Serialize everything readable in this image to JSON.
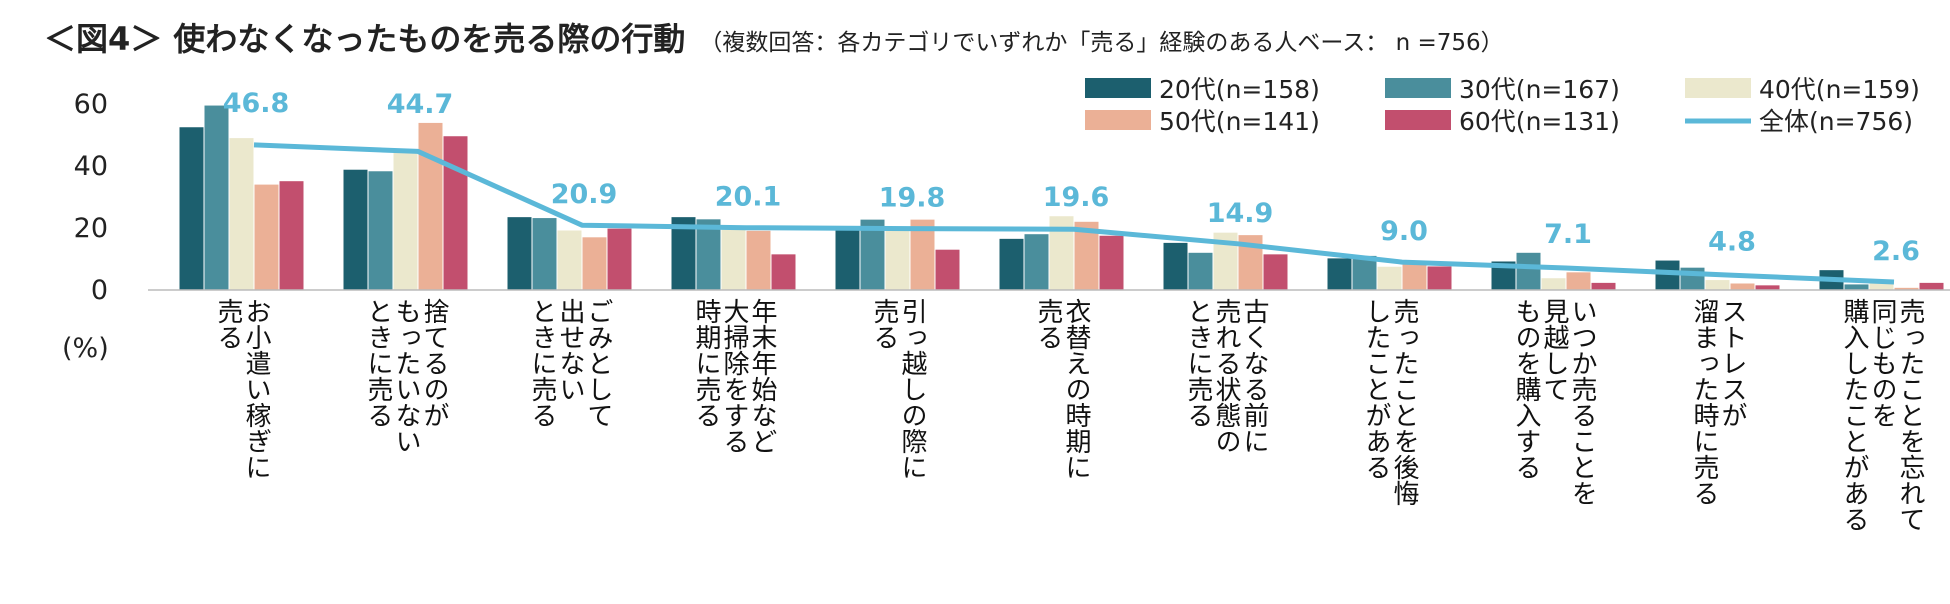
{
  "title": {
    "main": "＜図4＞ 使わなくなったものを売る際の行動",
    "sub": "（複数回答：各カテゴリでいずれか「売る」経験のある人ベース： n =756）"
  },
  "y_unit": "(%)",
  "colors": {
    "20s": "#1c5f6e",
    "30s": "#4a8e9c",
    "40s": "#ebe8cd",
    "50s": "#ebb096",
    "60s": "#c24f6e",
    "overall": "#5bb8d8"
  },
  "chart_data": {
    "type": "bar",
    "title": "使わなくなったものを売る際の行動",
    "ylabel": "(%)",
    "ylim": [
      0,
      60
    ],
    "yticks": [
      0,
      20,
      40,
      60
    ],
    "legend_position": "top-right",
    "categories": [
      [
        "お小遣い稼ぎに",
        "売る"
      ],
      [
        "捨てるのが",
        "もったいない",
        "ときに売る"
      ],
      [
        "ごみとして",
        "出せない",
        "ときに売る"
      ],
      [
        "年末年始など",
        "大掃除をする",
        "時期に売る"
      ],
      [
        "引っ越しの際に",
        "売る"
      ],
      [
        "衣替えの時期に",
        "売る"
      ],
      [
        "古くなる前に",
        "売れる状態の",
        "ときに売る"
      ],
      [
        "売ったことを後悔",
        "したことがある"
      ],
      [
        "いつか売ることを",
        "見越して",
        "ものを購入する"
      ],
      [
        "ストレスが",
        "溜まった時に売る"
      ],
      [
        "売ったことを忘れて",
        "同じものを",
        "購入したことがある"
      ]
    ],
    "series": [
      {
        "name": "20代(n=158)",
        "key": "20s",
        "values": [
          52.5,
          38.8,
          23.5,
          23.5,
          19.5,
          16.5,
          15.2,
          10.2,
          9.2,
          9.5,
          6.4
        ]
      },
      {
        "name": "30代(n=167)",
        "key": "30s",
        "values": [
          59.5,
          38.3,
          23.2,
          22.8,
          22.7,
          18.0,
          12.0,
          11.0,
          12.0,
          7.2,
          1.8
        ]
      },
      {
        "name": "40代(n=159)",
        "key": "40s",
        "values": [
          49.0,
          44.5,
          19.2,
          19.5,
          19.5,
          23.8,
          18.5,
          7.5,
          3.8,
          3.2,
          2.5
        ]
      },
      {
        "name": "50代(n=141)",
        "key": "50s",
        "values": [
          34.0,
          53.9,
          17.0,
          19.1,
          22.7,
          22.0,
          17.7,
          8.5,
          5.7,
          2.1,
          0.7
        ]
      },
      {
        "name": "60代(n=131)",
        "key": "60s",
        "values": [
          35.1,
          49.6,
          19.8,
          11.5,
          13.0,
          17.5,
          11.5,
          7.6,
          2.3,
          1.5,
          2.3
        ]
      }
    ],
    "overall": {
      "name": "全体(n=756)",
      "key": "overall",
      "values": [
        46.8,
        44.7,
        20.9,
        20.1,
        19.8,
        19.6,
        14.9,
        9.0,
        7.1,
        4.8,
        2.6
      ],
      "labels": [
        "46.8",
        "44.7",
        "20.9",
        "20.1",
        "19.8",
        "19.6",
        "14.9",
        "9.0",
        "7.1",
        "4.8",
        "2.6"
      ]
    }
  }
}
